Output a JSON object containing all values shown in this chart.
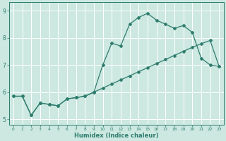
{
  "xlabel": "Humidex (Indice chaleur)",
  "ylabel": "",
  "bg_color": "#cce8e0",
  "grid_color": "#ffffff",
  "line_color": "#2e7d6e",
  "xlim": [
    -0.5,
    23.5
  ],
  "ylim": [
    4.8,
    9.3
  ],
  "xticks": [
    0,
    1,
    2,
    3,
    4,
    5,
    6,
    7,
    8,
    9,
    10,
    11,
    12,
    13,
    14,
    15,
    16,
    17,
    18,
    19,
    20,
    21,
    22,
    23
  ],
  "yticks": [
    5,
    6,
    7,
    8,
    9
  ],
  "line1_x": [
    0,
    1,
    2,
    3,
    4,
    5,
    6,
    7,
    8,
    9,
    10,
    11,
    12,
    13,
    14,
    15,
    16,
    17,
    18,
    19,
    20,
    21,
    22,
    23
  ],
  "line1_y": [
    5.85,
    5.85,
    5.15,
    5.6,
    5.55,
    5.5,
    5.75,
    5.8,
    5.85,
    6.0,
    7.0,
    7.8,
    7.7,
    8.5,
    8.75,
    8.9,
    8.65,
    8.5,
    8.35,
    8.45,
    8.2,
    7.25,
    7.0,
    6.95
  ],
  "line2_x": [
    0,
    1,
    2,
    3,
    4,
    5,
    6,
    7,
    8,
    9,
    10,
    11,
    12,
    13,
    14,
    15,
    16,
    17,
    18,
    19,
    20,
    21,
    22,
    23
  ],
  "line2_y": [
    5.85,
    5.85,
    5.15,
    5.6,
    5.55,
    5.5,
    5.75,
    5.8,
    5.85,
    6.0,
    6.15,
    6.3,
    6.45,
    6.6,
    6.75,
    6.9,
    7.05,
    7.2,
    7.35,
    7.5,
    7.65,
    7.78,
    7.9,
    6.95
  ]
}
